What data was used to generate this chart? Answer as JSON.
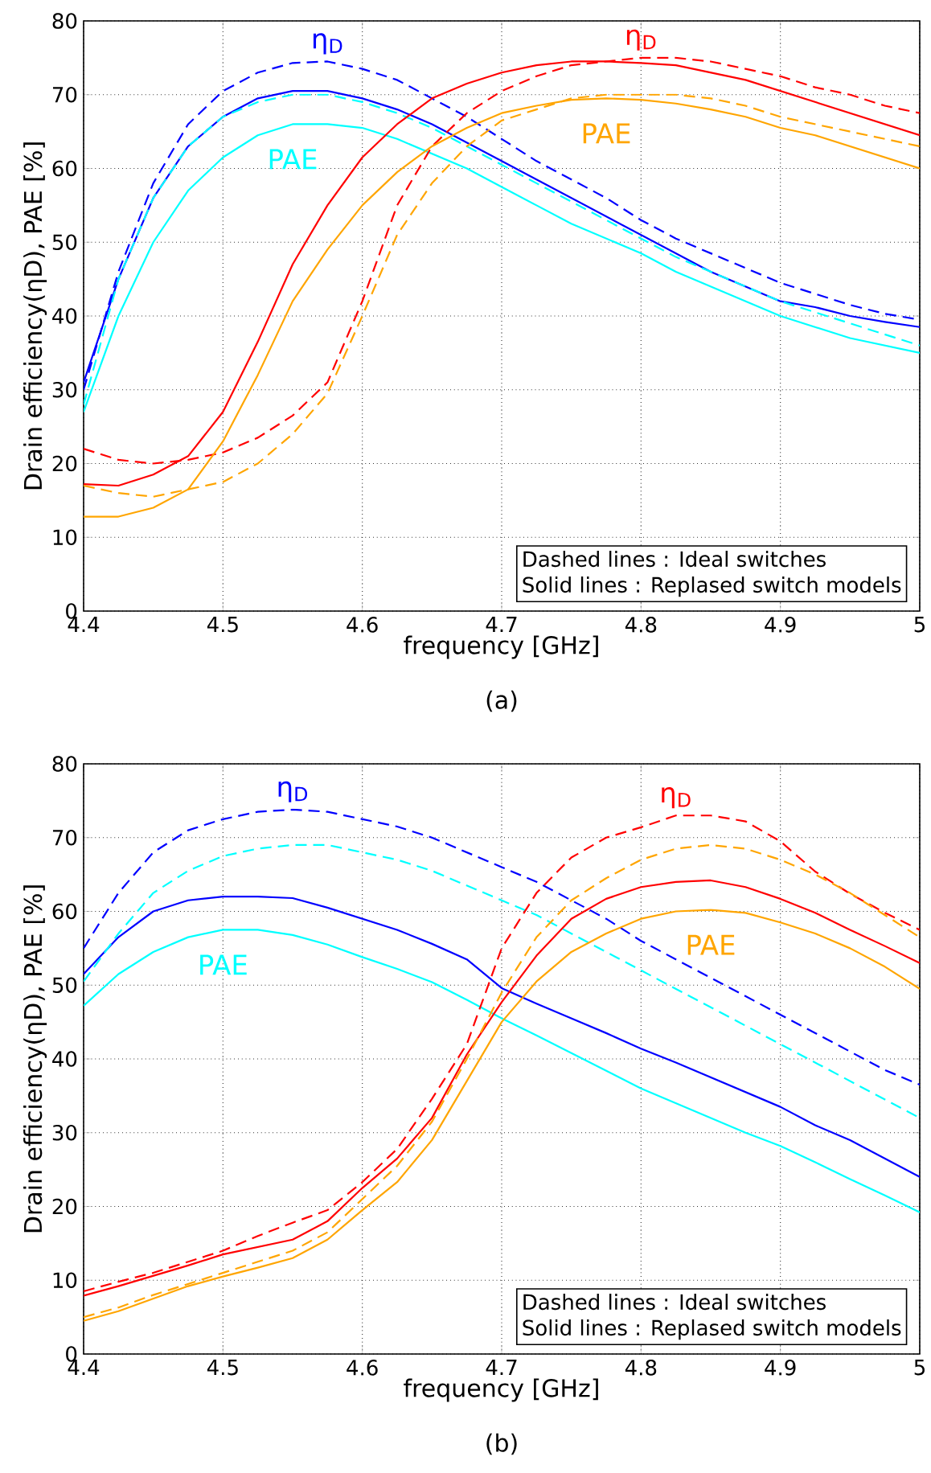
{
  "chart_data": [
    {
      "type": "line",
      "title": "(a)",
      "xlabel": "frequency [GHz]",
      "ylabel": "Drain efficiency(ηD), PAE [%]",
      "x": [
        4.4,
        4.425,
        4.45,
        4.475,
        4.5,
        4.525,
        4.55,
        4.575,
        4.6,
        4.625,
        4.65,
        4.675,
        4.7,
        4.725,
        4.75,
        4.775,
        4.8,
        4.825,
        4.85,
        4.875,
        4.9,
        4.925,
        4.95,
        4.975,
        5.0
      ],
      "xlim": [
        4.4,
        5.0
      ],
      "ylim": [
        0,
        80
      ],
      "xticks": [
        4.4,
        4.5,
        4.6,
        4.7,
        4.8,
        4.9,
        5
      ],
      "yticks": [
        0,
        10,
        20,
        30,
        40,
        50,
        60,
        70,
        80
      ],
      "grid": true,
      "series": [
        {
          "name": "η$_{D}$",
          "color": "#0000ff",
          "line_style": "dashed",
          "values": [
            30,
            46,
            58,
            66,
            70.5,
            73,
            74.3,
            74.5,
            73.5,
            72,
            69.5,
            67,
            64,
            61,
            58.5,
            56,
            53,
            50.5,
            48.5,
            46.5,
            44.5,
            43,
            41.5,
            40.3,
            39.5
          ]
        },
        {
          "color": "#0000ff",
          "line_style": "solid",
          "values": [
            31,
            45,
            56,
            63,
            67,
            69.5,
            70.5,
            70.5,
            69.5,
            68,
            66,
            63.5,
            61,
            58.5,
            56,
            53.5,
            51,
            48.5,
            46,
            44,
            42,
            41.2,
            40,
            39.2,
            38.5
          ]
        },
        {
          "color": "#00ffff",
          "line_style": "dashed",
          "values": [
            28,
            45,
            56,
            63,
            67,
            69,
            70,
            70,
            69,
            67.5,
            65.5,
            63,
            60.5,
            58,
            55.5,
            53,
            50.5,
            48,
            46,
            44,
            42,
            40.5,
            39,
            37.5,
            36
          ]
        },
        {
          "name": "PAE",
          "color": "#00ffff",
          "line_style": "solid",
          "values": [
            27,
            40,
            50,
            57,
            61.5,
            64.5,
            66,
            66,
            65.5,
            64,
            62,
            60,
            57.5,
            55,
            52.5,
            50.5,
            48.5,
            46,
            44,
            42,
            40,
            38.5,
            37,
            36,
            35
          ]
        },
        {
          "name": "η$_{D}$",
          "color": "#ff0000",
          "line_style": "dashed",
          "values": [
            22,
            20.5,
            20,
            20.5,
            21.5,
            23.5,
            26.5,
            31,
            42,
            55,
            63,
            67.5,
            70.5,
            72.5,
            74,
            74.5,
            75,
            75,
            74.5,
            73.5,
            72.5,
            71,
            70,
            68.5,
            67.5
          ]
        },
        {
          "color": "#ff0000",
          "line_style": "solid",
          "values": [
            17.2,
            17,
            18.5,
            21,
            27,
            36.5,
            47,
            55,
            61.5,
            66,
            69.5,
            71.5,
            73,
            74,
            74.5,
            74.5,
            74.3,
            74,
            73,
            72,
            70.5,
            69,
            67.5,
            66,
            64.5
          ]
        },
        {
          "color": "#ffa500",
          "line_style": "dashed",
          "values": [
            17,
            16,
            15.5,
            16.5,
            17.5,
            20,
            24,
            29.5,
            40,
            51,
            58,
            63,
            66.5,
            68,
            69.5,
            70,
            70,
            70,
            69.5,
            68.5,
            67,
            66,
            65,
            64,
            63
          ]
        },
        {
          "name": "PAE",
          "color": "#ffa500",
          "line_style": "solid",
          "values": [
            12.8,
            12.8,
            14,
            16.5,
            23,
            32,
            42,
            49,
            55,
            59.5,
            63,
            65.5,
            67.5,
            68.5,
            69.3,
            69.5,
            69.3,
            68.8,
            68,
            67,
            65.5,
            64.5,
            63,
            61.5,
            60
          ]
        }
      ],
      "annotations": [
        "Dashed lines : Ideal switches",
        "Solid lines : Replased switch models"
      ]
    },
    {
      "type": "line",
      "title": "(b)",
      "xlabel": "frequency [GHz]",
      "ylabel": "Drain efficiency(ηD), PAE [%]",
      "x": [
        4.4,
        4.425,
        4.45,
        4.475,
        4.5,
        4.525,
        4.55,
        4.575,
        4.6,
        4.625,
        4.65,
        4.675,
        4.7,
        4.725,
        4.75,
        4.775,
        4.8,
        4.825,
        4.85,
        4.875,
        4.9,
        4.925,
        4.95,
        4.975,
        5.0
      ],
      "xlim": [
        4.4,
        5.0
      ],
      "ylim": [
        0,
        80
      ],
      "xticks": [
        4.4,
        4.5,
        4.6,
        4.7,
        4.8,
        4.9,
        5
      ],
      "yticks": [
        0,
        10,
        20,
        30,
        40,
        50,
        60,
        70,
        80
      ],
      "grid": true,
      "series": [
        {
          "name": "η$_{D}$",
          "color": "#0000ff",
          "line_style": "dashed",
          "values": [
            55,
            62.5,
            68,
            71,
            72.5,
            73.5,
            73.8,
            73.5,
            72.5,
            71.5,
            70,
            68,
            66,
            64,
            61.5,
            59,
            56,
            53.5,
            51,
            48.5,
            46,
            43.5,
            41,
            38.5,
            36.5
          ]
        },
        {
          "color": "#0000ff",
          "line_style": "solid",
          "values": [
            51.5,
            56.5,
            60,
            61.5,
            62,
            62,
            61.8,
            60.5,
            59,
            57.5,
            55.6,
            53.5,
            49.6,
            47.5,
            45.5,
            43.5,
            41.4,
            39.5,
            37.5,
            35.5,
            33.5,
            31,
            29,
            26.5,
            24
          ]
        },
        {
          "color": "#00ffff",
          "line_style": "dashed",
          "values": [
            50.5,
            57,
            62.5,
            65.5,
            67.5,
            68.5,
            69,
            69,
            68,
            67,
            65.5,
            63.5,
            61.5,
            59.5,
            57,
            54.5,
            52,
            49.5,
            47,
            44.5,
            42,
            39.5,
            37,
            34.5,
            32
          ]
        },
        {
          "name": "PAE",
          "color": "#00ffff",
          "line_style": "solid",
          "values": [
            47.2,
            51.5,
            54.5,
            56.5,
            57.5,
            57.5,
            56.8,
            55.5,
            53.8,
            52.2,
            50.4,
            48,
            45.5,
            43.2,
            40.8,
            38.4,
            36,
            34,
            32,
            30,
            28.2,
            26,
            23.7,
            21.5,
            19.2
          ]
        },
        {
          "name": "η$_{D}$",
          "color": "#ff0000",
          "line_style": "dashed",
          "values": [
            8.5,
            9.8,
            11,
            12.5,
            14,
            16,
            17.8,
            19.5,
            23.3,
            27.8,
            34.6,
            42,
            55,
            62.5,
            67.3,
            70,
            71.4,
            73,
            73,
            72.2,
            69.5,
            65.4,
            62.4,
            59.8,
            57.5
          ]
        },
        {
          "color": "#ff0000",
          "line_style": "solid",
          "values": [
            7.9,
            9.2,
            10.6,
            12,
            13.5,
            14.5,
            15.5,
            18,
            22.5,
            26.5,
            32,
            40.6,
            47.7,
            54,
            59,
            61.7,
            63.3,
            64,
            64.2,
            63.3,
            61.7,
            59.8,
            57.5,
            55.3,
            53
          ]
        },
        {
          "color": "#ffa500",
          "line_style": "dashed",
          "values": [
            5,
            6.3,
            8,
            9.5,
            11,
            12.5,
            14,
            16.5,
            21,
            25.5,
            31.5,
            40,
            49,
            56.5,
            61.5,
            64.5,
            67,
            68.5,
            69,
            68.5,
            67,
            65,
            62.5,
            59.5,
            56.5
          ]
        },
        {
          "name": "PAE",
          "color": "#ffa500",
          "line_style": "solid",
          "values": [
            4.5,
            5.8,
            7.5,
            9.2,
            10.5,
            11.7,
            13,
            15.5,
            19.5,
            23.3,
            29,
            37,
            45,
            50.5,
            54.5,
            57,
            59,
            60,
            60.2,
            59.8,
            58.5,
            57,
            55,
            52.5,
            49.5
          ]
        }
      ],
      "annotations": [
        "Dashed lines : Ideal switches",
        "Solid lines : Replased switch models"
      ]
    }
  ]
}
